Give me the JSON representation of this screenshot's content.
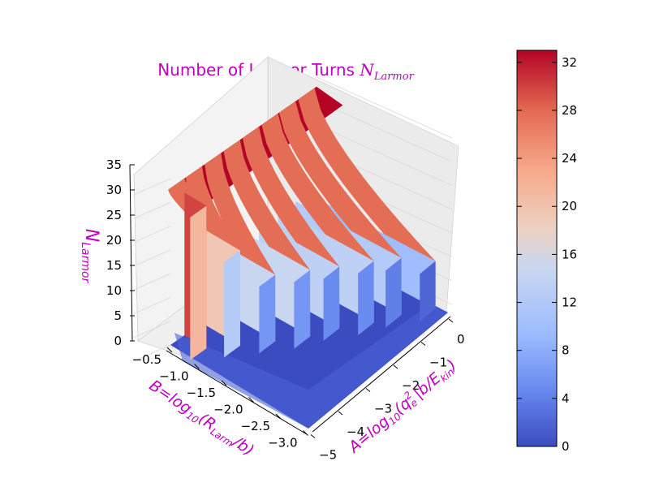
{
  "chart_data": {
    "type": "surface3d",
    "title": "Number of Larmor Turns ",
    "title_math": "N",
    "title_math_sub": "Larmor",
    "zlabel_main": "N",
    "zlabel_sub": "Larmor",
    "xlabel_text": "B=log",
    "xlabel_sub": "10",
    "xlabel_rest": "(R",
    "xlabel_rest_sub": "Larm",
    "xlabel_tail": "/b)",
    "ylabel_text": "A=log",
    "ylabel_sub": "10",
    "ylabel_rest": "(q",
    "ylabel_sup": "2",
    "ylabel_rest_sub": "e",
    "ylabel_tail": "|b/E",
    "ylabel_tail_sub": "kin",
    "ylabel_end": ")",
    "b_ticks": [
      "−0.5",
      "−1.0",
      "−1.5",
      "−2.0",
      "−2.5",
      "−3.0"
    ],
    "a_ticks": [
      "0",
      "−1",
      "−2",
      "−3",
      "−4",
      "−5"
    ],
    "z_ticks": [
      "0",
      "5",
      "10",
      "15",
      "20",
      "25",
      "30",
      "35"
    ],
    "zlim": [
      0,
      35
    ],
    "b_range": [
      -0.5,
      -3.0
    ],
    "a_range": [
      0,
      -5
    ],
    "plateau_bands": [
      {
        "a": -0.35,
        "b_from": -0.5,
        "b_to": -2.8,
        "value": 10
      },
      {
        "a": -1.0,
        "b_from": -0.5,
        "b_to": -2.5,
        "value": 12
      },
      {
        "a": -1.6,
        "b_from": -0.5,
        "b_to": -2.3,
        "value": 13
      },
      {
        "a": -2.25,
        "b_from": -0.5,
        "b_to": -2.0,
        "value": 13
      },
      {
        "a": -2.9,
        "b_from": -0.5,
        "b_to": -1.8,
        "value": 14
      },
      {
        "a": -3.55,
        "b_from": -0.5,
        "b_to": -1.5,
        "value": 14
      },
      {
        "a": -4.2,
        "b_from": -0.5,
        "b_to": -1.2,
        "value": 20
      },
      {
        "a": -4.8,
        "b_from": -0.5,
        "b_to": -0.9,
        "value": 30
      }
    ],
    "max_value": 33,
    "colorbar": {
      "ticks": [
        "0",
        "4",
        "8",
        "12",
        "16",
        "20",
        "24",
        "28",
        "32"
      ],
      "min": 0,
      "max": 33,
      "colormap": "coolwarm",
      "stops": [
        "#3b4cc0",
        "#6788ee",
        "#9abbff",
        "#c9d7f0",
        "#edd1c2",
        "#f7a889",
        "#e26952",
        "#b40426"
      ]
    },
    "label_color": "#bf00bf",
    "grid": true
  }
}
